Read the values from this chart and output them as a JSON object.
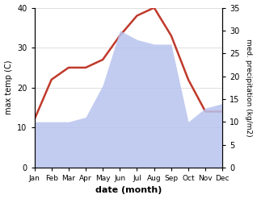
{
  "months": [
    "Jan",
    "Feb",
    "Mar",
    "Apr",
    "May",
    "Jun",
    "Jul",
    "Aug",
    "Sep",
    "Oct",
    "Nov",
    "Dec"
  ],
  "max_temp": [
    12,
    22,
    25,
    25,
    27,
    33,
    38,
    40,
    33,
    22,
    14,
    14
  ],
  "precipitation": [
    10,
    10,
    10,
    11,
    18,
    30,
    28,
    27,
    27,
    10,
    13,
    14
  ],
  "temp_color": "#c0392b",
  "precip_color": "#b8c4ee",
  "left_ylabel": "max temp (C)",
  "right_ylabel": "med. precipitation (kg/m2)",
  "xlabel": "date (month)",
  "temp_ylim": [
    0,
    40
  ],
  "precip_ylim": [
    0,
    35
  ],
  "background_color": "#ffffff",
  "grid_color": "#d0d0d0"
}
